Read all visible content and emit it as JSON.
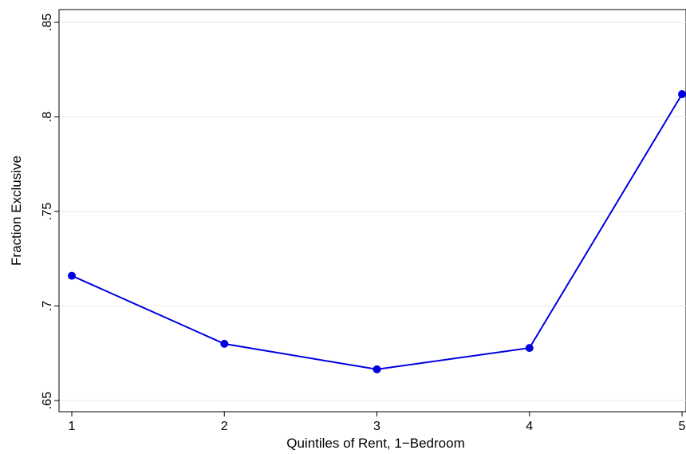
{
  "chart_data": {
    "type": "line",
    "x": [
      1,
      2,
      3,
      4,
      5
    ],
    "series": [
      {
        "values": [
          0.716,
          0.68,
          0.6665,
          0.6778,
          0.812
        ],
        "color": "#0000e0"
      }
    ],
    "xlabel": "Quintiles of Rent, 1−Bedroom",
    "ylabel": "Fraction Exclusive",
    "xlim": [
      1,
      5
    ],
    "ylim": [
      0.65,
      0.85
    ],
    "x_ticks": [
      "1",
      "2",
      "3",
      "4",
      "5"
    ],
    "y_ticks": [
      {
        "value": 0.65,
        "label": ".65"
      },
      {
        "value": 0.7,
        "label": ".7"
      },
      {
        "value": 0.75,
        "label": ".75"
      },
      {
        "value": 0.8,
        "label": ".8"
      },
      {
        "value": 0.85,
        "label": ".85"
      }
    ],
    "grid": true
  }
}
